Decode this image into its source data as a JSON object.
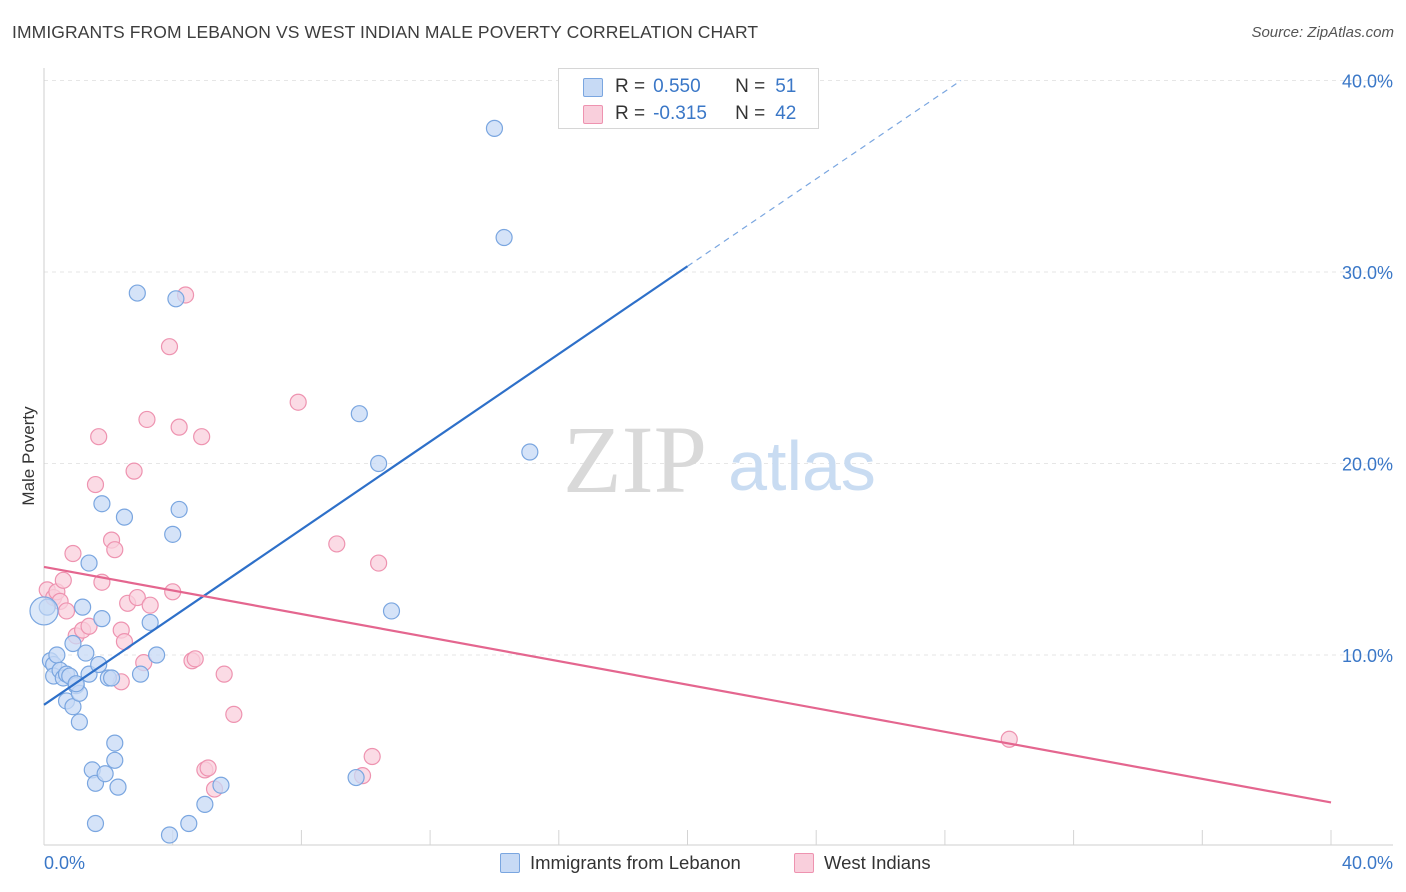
{
  "title": "IMMIGRANTS FROM LEBANON VS WEST INDIAN MALE POVERTY CORRELATION CHART",
  "source": "Source: ZipAtlas.com",
  "watermark": {
    "zip": "ZIP",
    "atlas": "atlas"
  },
  "legend": {
    "rows": [
      {
        "r_label": "R =",
        "r_value": "0.550",
        "n_label": "N =",
        "n_value": "51"
      },
      {
        "r_label": "R =",
        "r_value": "-0.315",
        "n_label": "N =",
        "n_value": "42"
      }
    ]
  },
  "colors": {
    "lebanon_fill": "#c7daf5",
    "lebanon_stroke": "#7aa6e0",
    "lebanon_line": "#2e70c9",
    "west_fill": "#f9cfdc",
    "west_stroke": "#ee93b0",
    "west_line": "#e4668f",
    "axis_text": "#3a77c7",
    "grid": "#e6e6e6"
  },
  "chart_data": {
    "type": "scatter",
    "title": "IMMIGRANTS FROM LEBANON VS WEST INDIAN MALE POVERTY CORRELATION CHART",
    "xlabel": "",
    "ylabel": "Male Poverty",
    "xlim": [
      0,
      40
    ],
    "ylim": [
      0,
      40
    ],
    "x_tick_labels": [
      "0.0%",
      "40.0%"
    ],
    "y_ticks": [
      10,
      20,
      30,
      40
    ],
    "y_tick_labels": [
      "10.0%",
      "20.0%",
      "30.0%",
      "40.0%"
    ],
    "series": [
      {
        "name": "Immigrants from Lebanon",
        "r": 0.55,
        "n": 51,
        "trend": {
          "x0": 0,
          "y0": 7.4,
          "x1": 20,
          "y1": 30.3,
          "dash_x1": 28.5,
          "dash_y1": 40.0
        },
        "points": [
          [
            0.1,
            12.5
          ],
          [
            0.2,
            9.7
          ],
          [
            0.3,
            9.5
          ],
          [
            0.3,
            8.9
          ],
          [
            0.4,
            10.0
          ],
          [
            0.5,
            9.2
          ],
          [
            0.6,
            8.8
          ],
          [
            0.7,
            9.0
          ],
          [
            0.7,
            7.6
          ],
          [
            0.8,
            8.9
          ],
          [
            0.9,
            10.6
          ],
          [
            0.9,
            7.3
          ],
          [
            1.0,
            8.4
          ],
          [
            1.1,
            8.0
          ],
          [
            1.1,
            6.5
          ],
          [
            1.2,
            12.5
          ],
          [
            1.3,
            10.1
          ],
          [
            1.4,
            9.0
          ],
          [
            1.4,
            14.8
          ],
          [
            1.5,
            4.0
          ],
          [
            1.6,
            3.3
          ],
          [
            1.6,
            1.2
          ],
          [
            1.7,
            9.5
          ],
          [
            1.8,
            17.9
          ],
          [
            1.8,
            11.9
          ],
          [
            1.9,
            3.8
          ],
          [
            2.0,
            8.8
          ],
          [
            2.1,
            8.8
          ],
          [
            2.2,
            5.4
          ],
          [
            2.2,
            4.5
          ],
          [
            2.3,
            3.1
          ],
          [
            2.5,
            17.2
          ],
          [
            2.9,
            28.9
          ],
          [
            3.0,
            9.0
          ],
          [
            3.3,
            11.7
          ],
          [
            3.5,
            10.0
          ],
          [
            3.9,
            0.6
          ],
          [
            4.0,
            16.3
          ],
          [
            4.1,
            28.6
          ],
          [
            4.2,
            17.6
          ],
          [
            4.5,
            1.2
          ],
          [
            5.0,
            2.2
          ],
          [
            5.5,
            3.2
          ],
          [
            9.7,
            3.6
          ],
          [
            9.8,
            22.6
          ],
          [
            10.4,
            20.0
          ],
          [
            10.8,
            12.3
          ],
          [
            14.0,
            37.5
          ],
          [
            14.3,
            31.8
          ],
          [
            15.1,
            20.6
          ],
          [
            1.0,
            8.5
          ]
        ]
      },
      {
        "name": "West Indians",
        "r": -0.315,
        "n": 42,
        "trend": {
          "x0": 0,
          "y0": 14.6,
          "x1": 40,
          "y1": 2.3
        },
        "points": [
          [
            0.1,
            13.4
          ],
          [
            0.3,
            13.0
          ],
          [
            0.4,
            13.3
          ],
          [
            0.5,
            12.8
          ],
          [
            0.6,
            13.9
          ],
          [
            0.7,
            12.3
          ],
          [
            0.9,
            15.3
          ],
          [
            1.0,
            11.0
          ],
          [
            1.2,
            11.3
          ],
          [
            1.4,
            11.5
          ],
          [
            1.6,
            18.9
          ],
          [
            1.7,
            21.4
          ],
          [
            1.8,
            13.8
          ],
          [
            2.1,
            16.0
          ],
          [
            2.2,
            15.5
          ],
          [
            2.4,
            11.3
          ],
          [
            2.4,
            8.6
          ],
          [
            2.5,
            10.7
          ],
          [
            2.6,
            12.7
          ],
          [
            2.8,
            19.6
          ],
          [
            2.9,
            13.0
          ],
          [
            3.1,
            9.6
          ],
          [
            3.2,
            22.3
          ],
          [
            3.3,
            12.6
          ],
          [
            3.9,
            26.1
          ],
          [
            4.0,
            13.3
          ],
          [
            4.2,
            21.9
          ],
          [
            4.4,
            28.8
          ],
          [
            4.6,
            9.7
          ],
          [
            4.7,
            9.8
          ],
          [
            4.9,
            21.4
          ],
          [
            5.0,
            4.0
          ],
          [
            5.1,
            4.1
          ],
          [
            5.3,
            3.0
          ],
          [
            5.6,
            9.0
          ],
          [
            5.9,
            6.9
          ],
          [
            7.9,
            23.2
          ],
          [
            9.1,
            15.8
          ],
          [
            9.9,
            3.7
          ],
          [
            10.2,
            4.7
          ],
          [
            10.4,
            14.8
          ],
          [
            30.0,
            5.6
          ]
        ]
      }
    ]
  },
  "bottom_legend": {
    "lebanon": "Immigrants from Lebanon",
    "west": "West Indians"
  }
}
